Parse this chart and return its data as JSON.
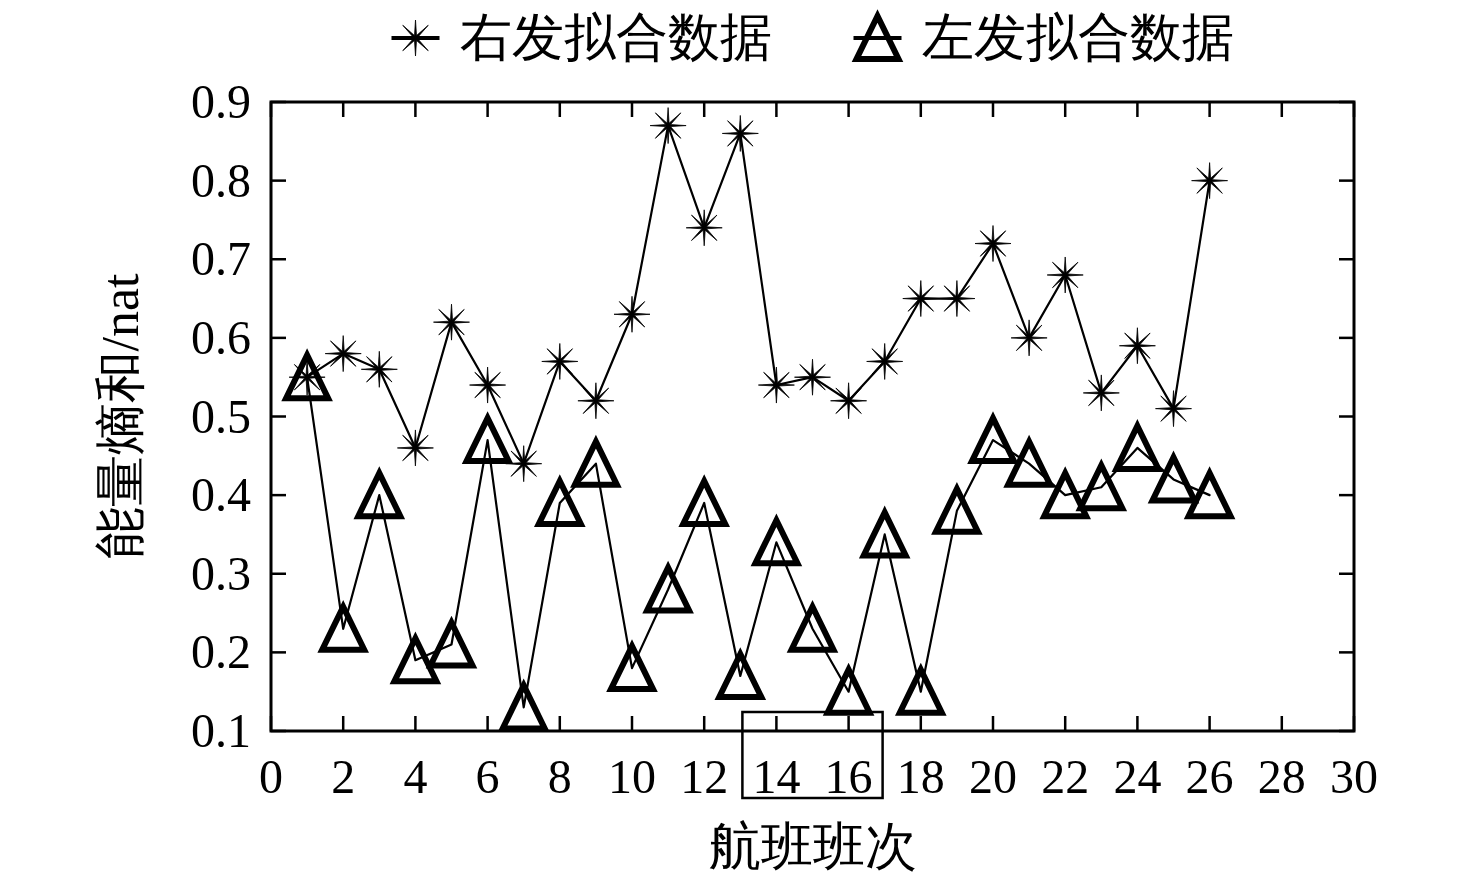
{
  "chart_data": {
    "type": "line",
    "xlabel": "航班班次",
    "ylabel": "能量熵和/nat",
    "x": [
      1,
      2,
      3,
      4,
      5,
      6,
      7,
      8,
      9,
      10,
      11,
      12,
      13,
      14,
      15,
      16,
      17,
      18,
      19,
      20,
      21,
      22,
      23,
      24,
      25,
      26
    ],
    "series": [
      {
        "name": "右发拟合数据",
        "color": "#000000",
        "marker": "star",
        "values": [
          0.55,
          0.58,
          0.56,
          0.46,
          0.62,
          0.54,
          0.44,
          0.57,
          0.52,
          0.63,
          0.87,
          0.74,
          0.86,
          0.54,
          0.55,
          0.52,
          0.57,
          0.65,
          0.65,
          0.72,
          0.6,
          0.68,
          0.53,
          0.59,
          0.51,
          0.8
        ]
      },
      {
        "name": "左发拟合数据",
        "color": "#000000",
        "marker": "triangle",
        "values": [
          0.55,
          0.23,
          0.4,
          0.19,
          0.21,
          0.47,
          0.13,
          0.39,
          0.44,
          0.18,
          0.28,
          0.39,
          0.17,
          0.34,
          0.23,
          0.15,
          0.35,
          0.15,
          0.38,
          0.47,
          0.44,
          0.4,
          0.41,
          0.46,
          0.42,
          0.4
        ]
      }
    ],
    "xlim": [
      0,
      30
    ],
    "xticks": [
      0,
      2,
      4,
      6,
      8,
      10,
      12,
      14,
      16,
      18,
      20,
      22,
      24,
      26,
      28,
      30
    ],
    "ylim": [
      0.1,
      0.9
    ],
    "yticks": [
      0.1,
      0.2,
      0.3,
      0.4,
      0.5,
      0.6,
      0.7,
      0.8,
      0.9
    ],
    "legend": "top"
  }
}
